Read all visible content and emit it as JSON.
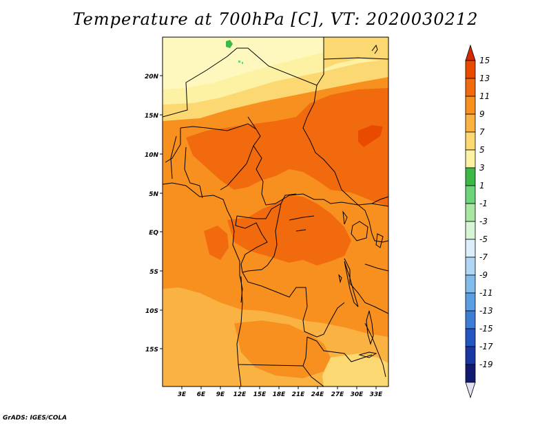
{
  "title": "Temperature at 700hPa [C], VT: 2020030212",
  "credit": "GrADS: IGES/COLA",
  "map": {
    "lat_labels": [
      "20N",
      "15N",
      "10N",
      "5N",
      "EQ",
      "5S",
      "10S",
      "15S"
    ],
    "lon_labels": [
      "3E",
      "6E",
      "9E",
      "12E",
      "15E",
      "18E",
      "21E",
      "24E",
      "27E",
      "30E",
      "33E"
    ]
  },
  "colorbar": {
    "labels": [
      "15",
      "13",
      "11",
      "9",
      "7",
      "5",
      "3",
      "1",
      "-1",
      "-3",
      "-5",
      "-7",
      "-9",
      "-11",
      "-13",
      "-15",
      "-17",
      "-19"
    ],
    "colors": [
      "#d42a00",
      "#ea4a00",
      "#f26a0e",
      "#f7901f",
      "#fab243",
      "#fcd872",
      "#fdf2a4",
      "#3cb846",
      "#6ed47a",
      "#a8e6a4",
      "#d8f4d6",
      "#ddeefa",
      "#b0d6f4",
      "#82bcec",
      "#5a9ee4",
      "#3c7ed6",
      "#2356c0",
      "#1a36a2",
      "#101a6e",
      "#e1e1f2"
    ]
  }
}
